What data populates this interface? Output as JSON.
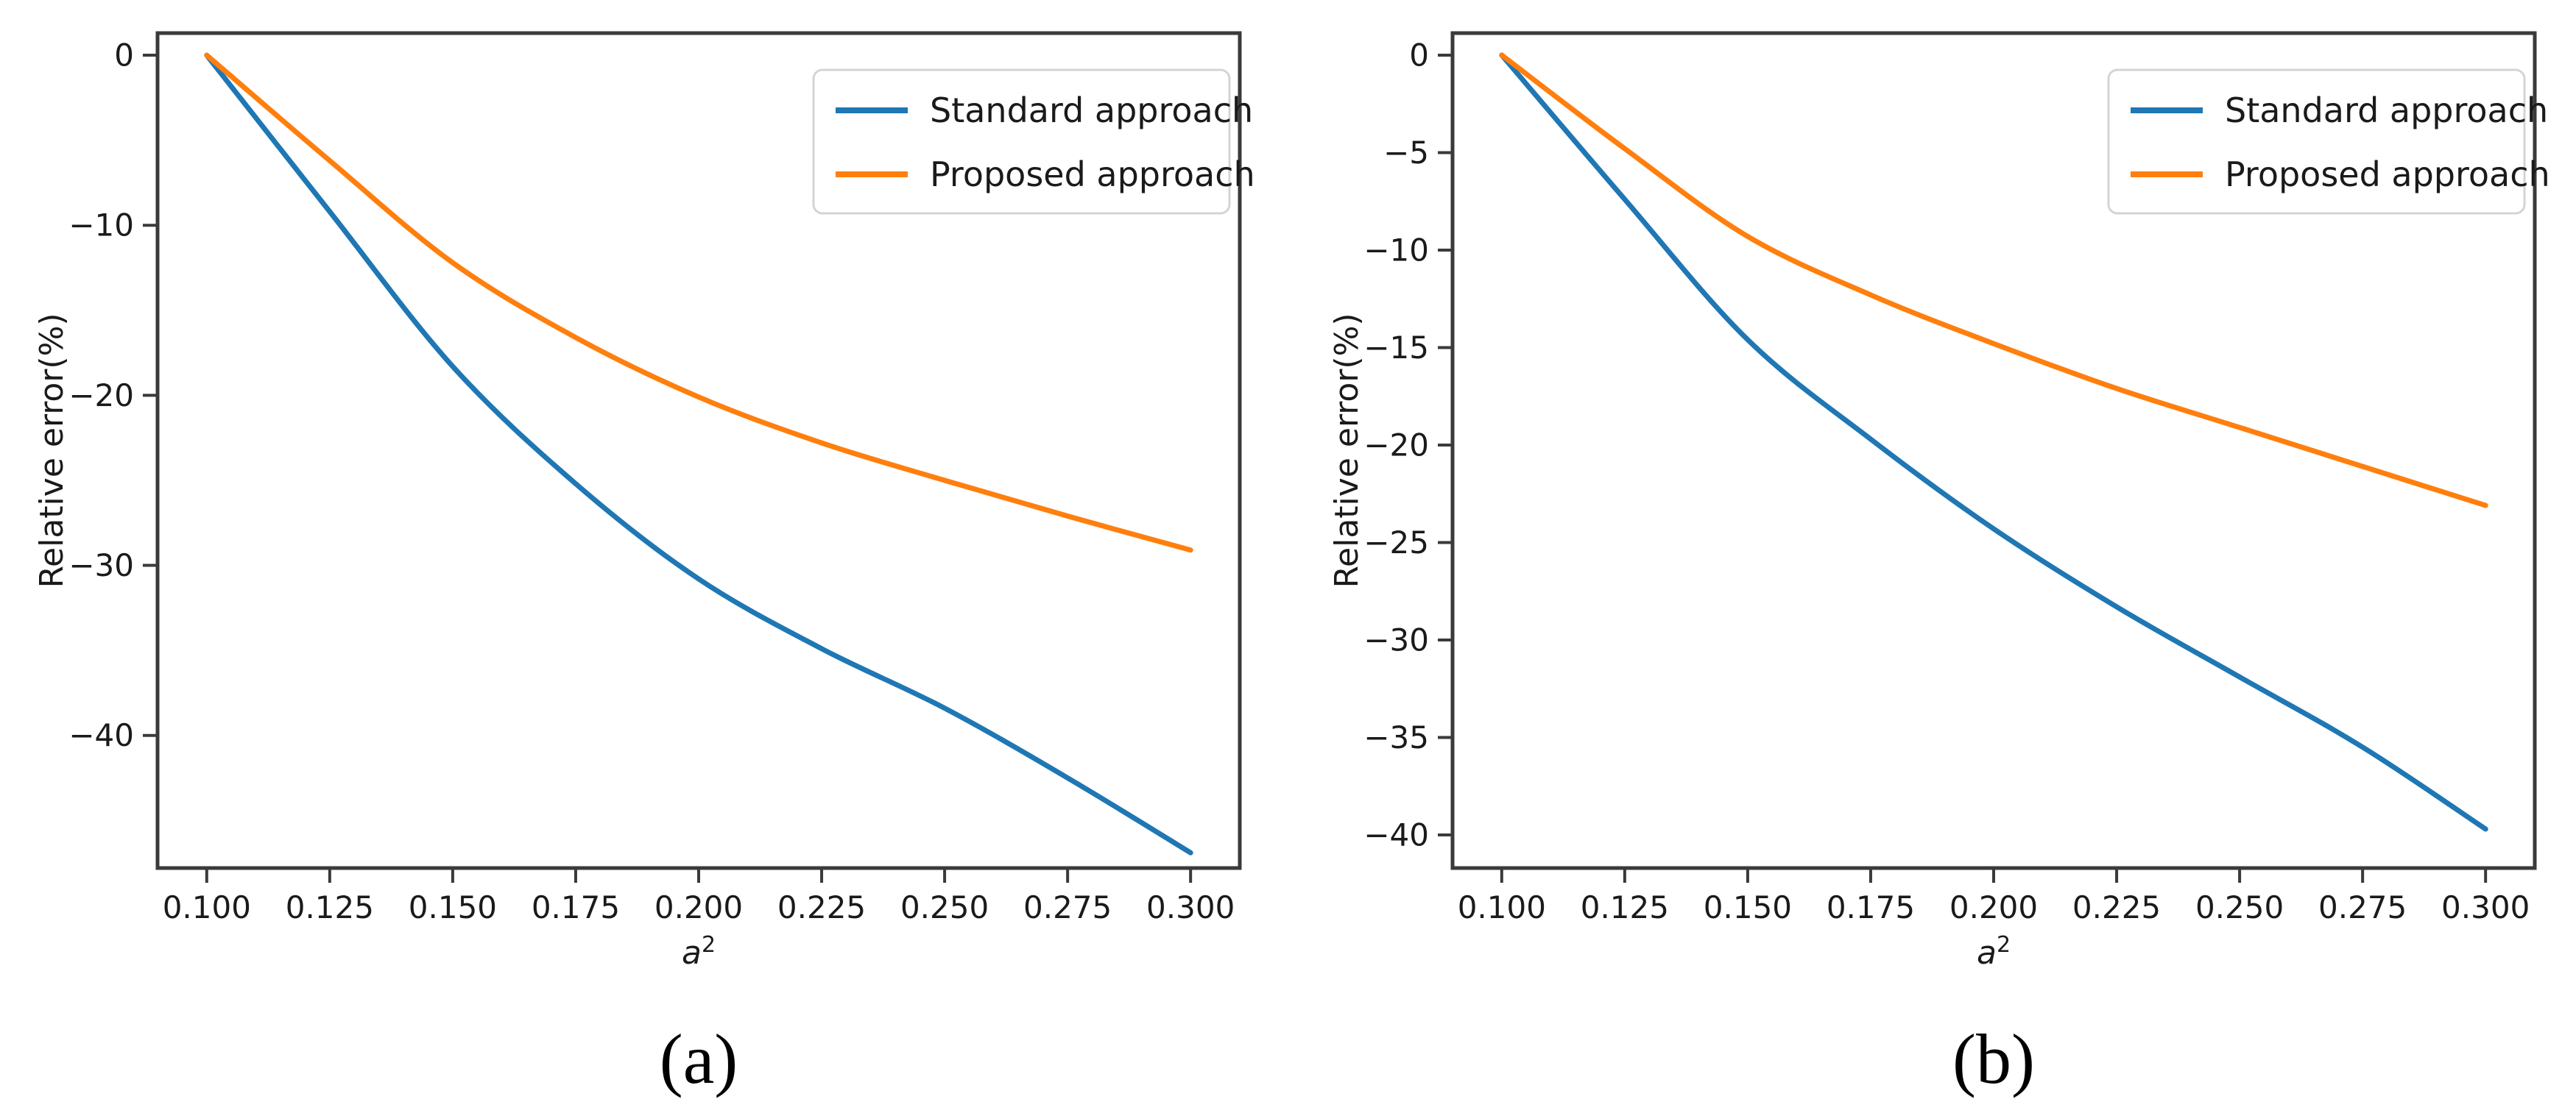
{
  "figure": {
    "background": "#ffffff",
    "caption_a": "(a)",
    "caption_b": "(b)"
  },
  "colors": {
    "standard_line": "#1f77b4",
    "proposed_line": "#ff7f0e",
    "spine": "#3a3a3a",
    "text": "#1a1a1a",
    "legend_border": "#d4d4d4",
    "legend_background": "#ffffff"
  },
  "chart_data": [
    {
      "id": "a",
      "type": "line",
      "caption": "(a)",
      "title": "",
      "xlabel_base": "a",
      "xlabel_exponent": "2",
      "ylabel": "Relative error(%)",
      "x": [
        0.1,
        0.125,
        0.15,
        0.175,
        0.2,
        0.225,
        0.25,
        0.275,
        0.3
      ],
      "x_tick_labels": [
        "0.100",
        "0.125",
        "0.150",
        "0.175",
        "0.200",
        "0.225",
        "0.250",
        "0.275",
        "0.300"
      ],
      "series": [
        {
          "name": "Standard approach",
          "color": "#1f77b4",
          "values": [
            0,
            -9.2,
            -18.3,
            -25.2,
            -30.8,
            -34.9,
            -38.4,
            -42.5,
            -46.9
          ]
        },
        {
          "name": "Proposed approach",
          "color": "#ff7f0e",
          "values": [
            0,
            -6.2,
            -12.2,
            -16.6,
            -20.1,
            -22.8,
            -25.0,
            -27.1,
            -29.1
          ]
        }
      ],
      "y_ticks": [
        0,
        -10,
        -20,
        -30,
        -40
      ],
      "y_tick_labels": [
        "0",
        "−10",
        "−20",
        "−30",
        "−40"
      ],
      "xlim": [
        0.09,
        0.31
      ],
      "ylim": [
        1.3,
        -47.8
      ],
      "legend_position": "upper right",
      "grid": false
    },
    {
      "id": "b",
      "type": "line",
      "caption": "(b)",
      "title": "",
      "xlabel_base": "a",
      "xlabel_exponent": "2",
      "ylabel": "Relative error(%)",
      "x": [
        0.1,
        0.125,
        0.15,
        0.175,
        0.2,
        0.225,
        0.25,
        0.275,
        0.3
      ],
      "x_tick_labels": [
        "0.100",
        "0.125",
        "0.150",
        "0.175",
        "0.200",
        "0.225",
        "0.250",
        "0.275",
        "0.300"
      ],
      "series": [
        {
          "name": "Standard approach",
          "color": "#1f77b4",
          "values": [
            0,
            -7.4,
            -14.6,
            -19.7,
            -24.3,
            -28.3,
            -31.9,
            -35.5,
            -39.7
          ]
        },
        {
          "name": "Proposed approach",
          "color": "#ff7f0e",
          "values": [
            0,
            -4.8,
            -9.3,
            -12.3,
            -14.8,
            -17.1,
            -19.1,
            -21.1,
            -23.1
          ]
        }
      ],
      "y_ticks": [
        0,
        -5,
        -10,
        -15,
        -20,
        -25,
        -30,
        -35,
        -40
      ],
      "y_tick_labels": [
        "0",
        "−5",
        "−10",
        "−15",
        "−20",
        "−25",
        "−30",
        "−35",
        "−40"
      ],
      "xlim": [
        0.09,
        0.31
      ],
      "ylim": [
        1.13,
        -41.7
      ],
      "legend_position": "upper right",
      "grid": false
    }
  ]
}
